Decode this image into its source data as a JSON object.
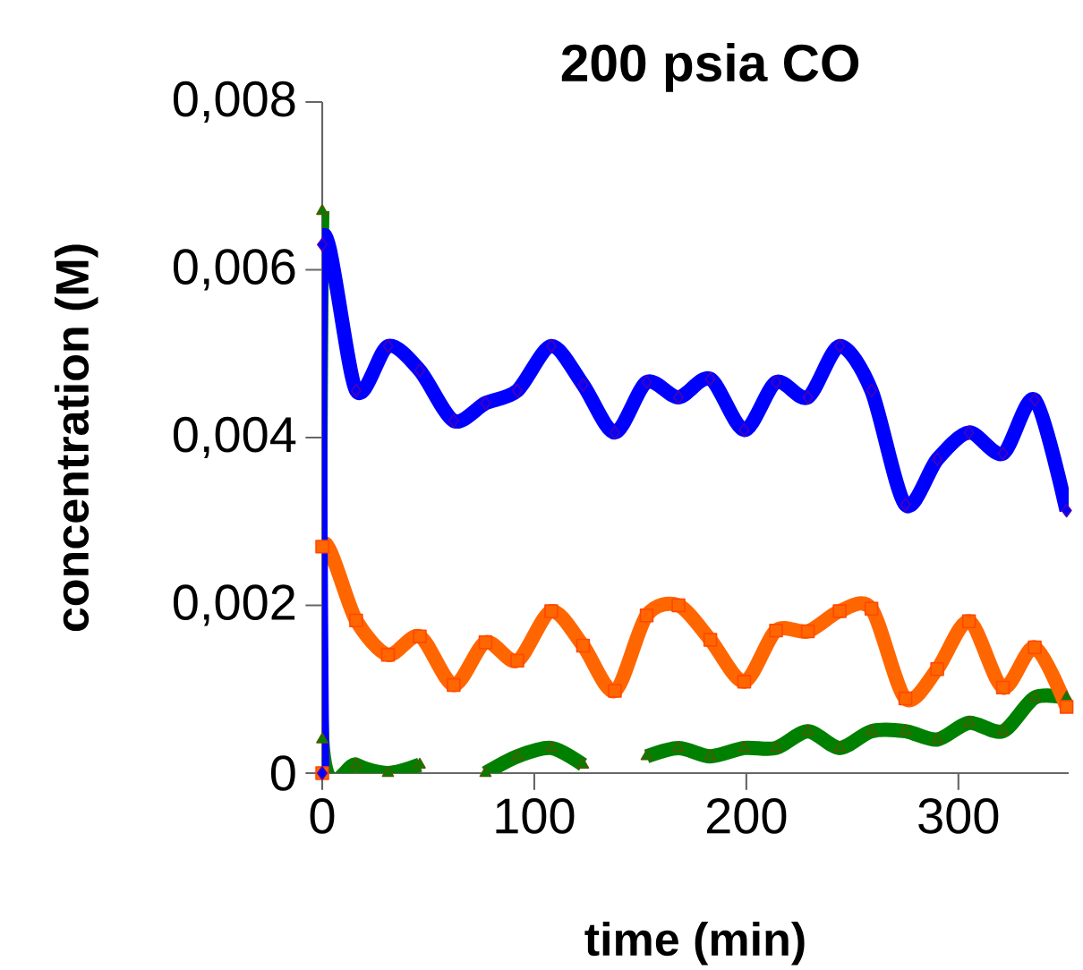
{
  "chart_data": {
    "type": "line",
    "title": "200 psia CO",
    "xlabel": "time (min)",
    "ylabel": "concentration (M)",
    "xlim": [
      0,
      352
    ],
    "xticks": [
      0,
      100,
      200,
      300
    ],
    "ylim": [
      0,
      0.008
    ],
    "yticks": [
      {
        "value": 0,
        "label": "0"
      },
      {
        "value": 0.002,
        "label": "0,002"
      },
      {
        "value": 0.004,
        "label": "0,004"
      },
      {
        "value": 0.006,
        "label": "0,006"
      },
      {
        "value": 0.008,
        "label": "0,008"
      }
    ],
    "grid": false,
    "line_style": "solid",
    "series": [
      {
        "color": "#008000",
        "marker": "triangle",
        "x": [
          0,
          0,
          16,
          31,
          46,
          62,
          77,
          92,
          108,
          123,
          138,
          153,
          168,
          183,
          199,
          214,
          229,
          244,
          259,
          275,
          290,
          305,
          321,
          336,
          351
        ],
        "values": [
          0.0067,
          0.0004,
          0.0001,
          0.0,
          0.0001,
          null,
          0.0,
          0.0002,
          0.0003,
          0.0001,
          null,
          0.0002,
          0.0003,
          0.0002,
          0.0003,
          0.0003,
          0.0005,
          0.0003,
          0.0005,
          0.0005,
          0.0004,
          0.0006,
          0.0005,
          0.0009,
          0.0009
        ]
      },
      {
        "color": "#ff6600",
        "marker": "square",
        "x": [
          0,
          0,
          16,
          31,
          46,
          62,
          77,
          92,
          108,
          123,
          138,
          153,
          168,
          183,
          199,
          214,
          229,
          244,
          259,
          275,
          290,
          305,
          321,
          336,
          351
        ],
        "values": [
          0,
          0.0027,
          0.00182,
          0.00141,
          0.00163,
          0.00105,
          0.00156,
          0.00134,
          0.00193,
          0.00152,
          0.00098,
          0.00188,
          0.002,
          0.00159,
          0.00109,
          0.0017,
          0.00169,
          0.00193,
          0.00196,
          0.00089,
          0.00124,
          0.00181,
          0.00102,
          0.0015,
          0.00079
        ]
      },
      {
        "color": "#0000ff",
        "marker": "diamond",
        "x": [
          0,
          0,
          16,
          31,
          46,
          62,
          77,
          92,
          108,
          123,
          138,
          153,
          168,
          183,
          199,
          214,
          229,
          244,
          259,
          275,
          290,
          305,
          321,
          336,
          351
        ],
        "values": [
          0,
          0.0063,
          0.00456,
          0.00509,
          0.0048,
          0.0042,
          0.00441,
          0.00456,
          0.00509,
          0.00463,
          0.00406,
          0.00466,
          0.00448,
          0.0047,
          0.00409,
          0.00466,
          0.00448,
          0.00509,
          0.00456,
          0.0032,
          0.00374,
          0.00406,
          0.00381,
          0.00445,
          0.00313
        ]
      }
    ]
  }
}
